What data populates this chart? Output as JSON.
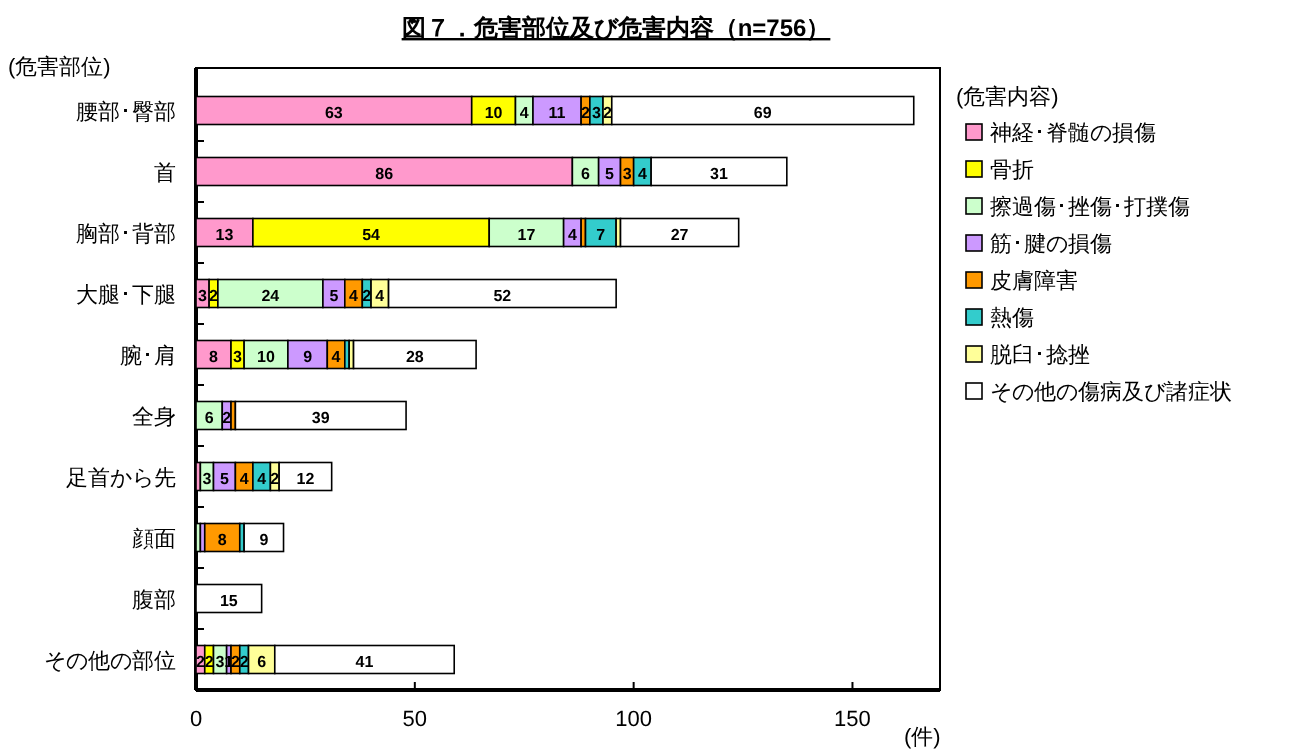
{
  "chart_data": {
    "type": "bar",
    "orientation": "horizontal",
    "stacked": true,
    "title": "図７．危害部位及び危害内容（n=756）",
    "ylabel": "(危害部位)",
    "xlabel": "(件)",
    "legend_title": "(危害内容)",
    "legend": "right",
    "categories": [
      "腰部･臀部",
      "首",
      "胸部･背部",
      "大腿･下腿",
      "腕･肩",
      "全身",
      "足首から先",
      "顔面",
      "腹部",
      "その他の部位"
    ],
    "xlim": [
      0,
      170
    ],
    "xticks": [
      0,
      50,
      100,
      150
    ],
    "series": [
      {
        "name": "神経･脊髄の損傷",
        "color": "#ff99cc",
        "values": [
          63,
          86,
          13,
          3,
          8,
          0,
          1,
          0,
          0,
          2
        ],
        "value_labels": [
          "63",
          "86",
          "13",
          "3",
          "8",
          null,
          null,
          null,
          null,
          "2"
        ]
      },
      {
        "name": "骨折",
        "color": "#ffff00",
        "values": [
          10,
          0,
          54,
          2,
          3,
          0,
          0,
          0,
          0,
          2
        ],
        "value_labels": [
          "10",
          null,
          "54",
          "2",
          "3",
          null,
          null,
          null,
          null,
          "2"
        ]
      },
      {
        "name": "擦過傷･挫傷･打撲傷",
        "color": "#ccffcc",
        "values": [
          4,
          6,
          17,
          24,
          10,
          6,
          3,
          1,
          0,
          3
        ],
        "value_labels": [
          "4",
          "6",
          "17",
          "24",
          "10",
          "6",
          "3",
          null,
          null,
          "3"
        ]
      },
      {
        "name": "筋･腱の損傷",
        "color": "#cc99ff",
        "values": [
          11,
          5,
          4,
          5,
          9,
          2,
          5,
          1,
          0,
          1
        ],
        "value_labels": [
          "11",
          "5",
          "4",
          "5",
          "9",
          "2",
          "5",
          null,
          null,
          "1"
        ]
      },
      {
        "name": "皮膚障害",
        "color": "#ff9900",
        "values": [
          2,
          3,
          1,
          4,
          4,
          1,
          4,
          8,
          0,
          2
        ],
        "value_labels": [
          "2",
          "3",
          null,
          "4",
          "4",
          null,
          "4",
          "8",
          null,
          "2"
        ]
      },
      {
        "name": "熱傷",
        "color": "#33cccc",
        "values": [
          3,
          4,
          7,
          2,
          1,
          0,
          4,
          1,
          0,
          2
        ],
        "value_labels": [
          "3",
          "4",
          "7",
          "2",
          null,
          null,
          "4",
          null,
          null,
          "2"
        ]
      },
      {
        "name": "脱臼･捻挫",
        "color": "#ffff99",
        "values": [
          2,
          0,
          1,
          4,
          1,
          0,
          2,
          0,
          0,
          6
        ],
        "value_labels": [
          "2",
          null,
          null,
          "4",
          null,
          null,
          "2",
          null,
          null,
          "6"
        ]
      },
      {
        "name": "その他の傷病及び諸症状",
        "color": "#ffffff",
        "values": [
          69,
          31,
          27,
          52,
          28,
          39,
          12,
          9,
          15,
          41
        ],
        "value_labels": [
          "69",
          "31",
          "27",
          "52",
          "28",
          "39",
          "12",
          "9",
          "15",
          "41"
        ]
      }
    ]
  }
}
